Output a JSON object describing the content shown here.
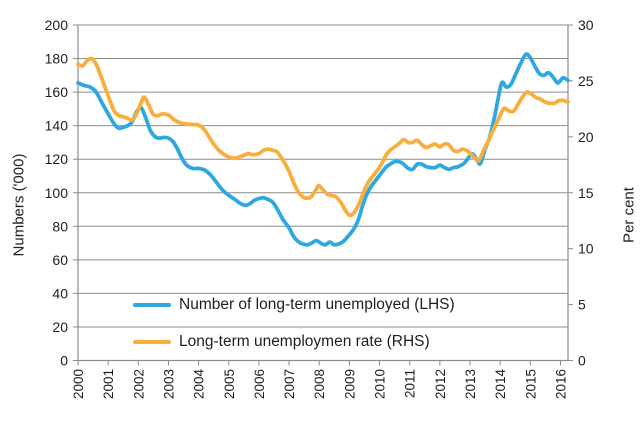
{
  "chart_data": {
    "type": "line",
    "title": "",
    "grid": true,
    "legend_position": "inside-bottom-left",
    "background": "#ffffff",
    "gridline_color": "#8c8c8c",
    "text_color": "#1f1f1f",
    "x_axis": {
      "range": [
        2000,
        2016.25
      ],
      "tick_labels": [
        "2000",
        "2001",
        "2002",
        "2003",
        "2004",
        "2005",
        "2006",
        "2007",
        "2008",
        "2009",
        "2010",
        "2011",
        "2012",
        "2013",
        "2014",
        "2015",
        "2016"
      ]
    },
    "y_left": {
      "label": "Numbers ('000)",
      "range": [
        0,
        200
      ],
      "ticks": [
        0,
        20,
        40,
        60,
        80,
        100,
        120,
        140,
        160,
        180,
        200
      ]
    },
    "y_right": {
      "label": "Per cent",
      "range": [
        0,
        30
      ],
      "ticks": [
        0,
        5,
        10,
        15,
        20,
        25,
        30
      ]
    },
    "series": [
      {
        "name": "Number of long-term unemployed (LHS)",
        "axis": "left",
        "color": "#2ea9e0",
        "points": [
          [
            2000.0,
            165.5
          ],
          [
            2000.2,
            164
          ],
          [
            2000.4,
            163
          ],
          [
            2000.6,
            160
          ],
          [
            2000.8,
            153.5
          ],
          [
            2001.0,
            147
          ],
          [
            2001.2,
            141
          ],
          [
            2001.35,
            138.5
          ],
          [
            2001.5,
            139
          ],
          [
            2001.65,
            140
          ],
          [
            2001.8,
            142.5
          ],
          [
            2001.95,
            148.5
          ],
          [
            2002.1,
            150.5
          ],
          [
            2002.25,
            144.5
          ],
          [
            2002.4,
            137
          ],
          [
            2002.55,
            133.5
          ],
          [
            2002.7,
            132.5
          ],
          [
            2002.85,
            133
          ],
          [
            2003.0,
            132.5
          ],
          [
            2003.15,
            130.5
          ],
          [
            2003.3,
            126
          ],
          [
            2003.45,
            120.5
          ],
          [
            2003.6,
            116.5
          ],
          [
            2003.8,
            114.5
          ],
          [
            2004.0,
            114.5
          ],
          [
            2004.2,
            113.5
          ],
          [
            2004.4,
            110.5
          ],
          [
            2004.6,
            106
          ],
          [
            2004.8,
            101.5
          ],
          [
            2005.0,
            98.5
          ],
          [
            2005.2,
            96
          ],
          [
            2005.4,
            93.5
          ],
          [
            2005.55,
            92.5
          ],
          [
            2005.7,
            93.5
          ],
          [
            2005.85,
            95.5
          ],
          [
            2006.0,
            96.5
          ],
          [
            2006.15,
            97
          ],
          [
            2006.3,
            96
          ],
          [
            2006.45,
            94.5
          ],
          [
            2006.6,
            90.5
          ],
          [
            2006.8,
            84
          ],
          [
            2007.0,
            79
          ],
          [
            2007.15,
            74
          ],
          [
            2007.3,
            71
          ],
          [
            2007.45,
            69.5
          ],
          [
            2007.6,
            69
          ],
          [
            2007.75,
            70
          ],
          [
            2007.9,
            71.5
          ],
          [
            2008.05,
            70
          ],
          [
            2008.2,
            69
          ],
          [
            2008.35,
            70.5
          ],
          [
            2008.5,
            69
          ],
          [
            2008.65,
            69.5
          ],
          [
            2008.8,
            71
          ],
          [
            2009.0,
            75
          ],
          [
            2009.15,
            78.5
          ],
          [
            2009.3,
            84
          ],
          [
            2009.45,
            93
          ],
          [
            2009.6,
            100
          ],
          [
            2009.75,
            104.5
          ],
          [
            2009.9,
            108
          ],
          [
            2010.05,
            111.5
          ],
          [
            2010.2,
            115
          ],
          [
            2010.35,
            117
          ],
          [
            2010.5,
            118.5
          ],
          [
            2010.65,
            118.5
          ],
          [
            2010.8,
            117
          ],
          [
            2010.95,
            114.5
          ],
          [
            2011.1,
            114
          ],
          [
            2011.25,
            117
          ],
          [
            2011.4,
            117
          ],
          [
            2011.55,
            115.5
          ],
          [
            2011.7,
            115
          ],
          [
            2011.85,
            115
          ],
          [
            2012.0,
            116.5
          ],
          [
            2012.15,
            115
          ],
          [
            2012.3,
            114
          ],
          [
            2012.45,
            115
          ],
          [
            2012.6,
            115.5
          ],
          [
            2012.8,
            117.5
          ],
          [
            2013.0,
            122
          ],
          [
            2013.1,
            123
          ],
          [
            2013.25,
            119
          ],
          [
            2013.35,
            117.5
          ],
          [
            2013.5,
            126
          ],
          [
            2013.65,
            133
          ],
          [
            2013.8,
            144
          ],
          [
            2013.9,
            153
          ],
          [
            2014.05,
            165.5
          ],
          [
            2014.2,
            163
          ],
          [
            2014.35,
            164.5
          ],
          [
            2014.5,
            170
          ],
          [
            2014.65,
            176
          ],
          [
            2014.85,
            182.5
          ],
          [
            2015.0,
            180.5
          ],
          [
            2015.15,
            175.5
          ],
          [
            2015.3,
            171
          ],
          [
            2015.45,
            170
          ],
          [
            2015.6,
            171.5
          ],
          [
            2015.75,
            169
          ],
          [
            2015.9,
            165.5
          ],
          [
            2016.0,
            167
          ],
          [
            2016.1,
            168.5
          ],
          [
            2016.25,
            167
          ]
        ]
      },
      {
        "name": "Long-term unemploymen rate (RHS)",
        "axis": "right",
        "color": "#f9ae3c",
        "points": [
          [
            2000.0,
            26.5
          ],
          [
            2000.15,
            26.35
          ],
          [
            2000.3,
            26.8
          ],
          [
            2000.45,
            27.0
          ],
          [
            2000.6,
            26.5
          ],
          [
            2000.75,
            25.5
          ],
          [
            2000.9,
            24.4
          ],
          [
            2001.05,
            23.3
          ],
          [
            2001.2,
            22.3
          ],
          [
            2001.35,
            21.9
          ],
          [
            2001.5,
            21.8
          ],
          [
            2001.65,
            21.65
          ],
          [
            2001.8,
            21.5
          ],
          [
            2001.95,
            22.1
          ],
          [
            2002.1,
            23.1
          ],
          [
            2002.2,
            23.55
          ],
          [
            2002.35,
            22.8
          ],
          [
            2002.5,
            22.0
          ],
          [
            2002.65,
            21.9
          ],
          [
            2002.8,
            22.05
          ],
          [
            2003.0,
            21.95
          ],
          [
            2003.2,
            21.5
          ],
          [
            2003.4,
            21.25
          ],
          [
            2003.6,
            21.15
          ],
          [
            2003.8,
            21.1
          ],
          [
            2004.0,
            21.05
          ],
          [
            2004.2,
            20.6
          ],
          [
            2004.4,
            19.75
          ],
          [
            2004.6,
            19.0
          ],
          [
            2004.8,
            18.5
          ],
          [
            2005.0,
            18.2
          ],
          [
            2005.2,
            18.1
          ],
          [
            2005.35,
            18.2
          ],
          [
            2005.5,
            18.35
          ],
          [
            2005.65,
            18.5
          ],
          [
            2005.8,
            18.4
          ],
          [
            2006.0,
            18.5
          ],
          [
            2006.15,
            18.8
          ],
          [
            2006.3,
            18.9
          ],
          [
            2006.45,
            18.8
          ],
          [
            2006.6,
            18.65
          ],
          [
            2006.8,
            17.9
          ],
          [
            2007.0,
            16.9
          ],
          [
            2007.15,
            15.9
          ],
          [
            2007.3,
            15.1
          ],
          [
            2007.45,
            14.65
          ],
          [
            2007.6,
            14.5
          ],
          [
            2007.75,
            14.7
          ],
          [
            2007.9,
            15.3
          ],
          [
            2007.98,
            15.65
          ],
          [
            2008.1,
            15.35
          ],
          [
            2008.25,
            14.9
          ],
          [
            2008.4,
            14.75
          ],
          [
            2008.55,
            14.65
          ],
          [
            2008.7,
            14.2
          ],
          [
            2008.85,
            13.5
          ],
          [
            2009.0,
            13.0
          ],
          [
            2009.15,
            13.2
          ],
          [
            2009.3,
            13.9
          ],
          [
            2009.45,
            14.9
          ],
          [
            2009.6,
            15.8
          ],
          [
            2009.75,
            16.4
          ],
          [
            2009.9,
            16.9
          ],
          [
            2010.05,
            17.5
          ],
          [
            2010.2,
            18.3
          ],
          [
            2010.35,
            18.8
          ],
          [
            2010.5,
            19.1
          ],
          [
            2010.65,
            19.4
          ],
          [
            2010.8,
            19.75
          ],
          [
            2010.95,
            19.5
          ],
          [
            2011.1,
            19.5
          ],
          [
            2011.25,
            19.7
          ],
          [
            2011.4,
            19.3
          ],
          [
            2011.55,
            19.05
          ],
          [
            2011.7,
            19.2
          ],
          [
            2011.85,
            19.35
          ],
          [
            2012.0,
            19.1
          ],
          [
            2012.15,
            19.35
          ],
          [
            2012.3,
            19.3
          ],
          [
            2012.45,
            18.8
          ],
          [
            2012.6,
            18.7
          ],
          [
            2012.75,
            18.9
          ],
          [
            2012.9,
            18.75
          ],
          [
            2013.05,
            18.4
          ],
          [
            2013.2,
            18.0
          ],
          [
            2013.3,
            17.9
          ],
          [
            2013.45,
            18.8
          ],
          [
            2013.6,
            19.6
          ],
          [
            2013.75,
            20.5
          ],
          [
            2013.9,
            21.3
          ],
          [
            2014.05,
            22.2
          ],
          [
            2014.15,
            22.55
          ],
          [
            2014.3,
            22.3
          ],
          [
            2014.45,
            22.3
          ],
          [
            2014.6,
            22.95
          ],
          [
            2014.75,
            23.6
          ],
          [
            2014.9,
            24.0
          ],
          [
            2015.05,
            23.8
          ],
          [
            2015.2,
            23.5
          ],
          [
            2015.35,
            23.35
          ],
          [
            2015.5,
            23.1
          ],
          [
            2015.65,
            23.0
          ],
          [
            2015.8,
            23.0
          ],
          [
            2015.95,
            23.25
          ],
          [
            2016.1,
            23.25
          ],
          [
            2016.25,
            23.1
          ]
        ]
      }
    ]
  }
}
